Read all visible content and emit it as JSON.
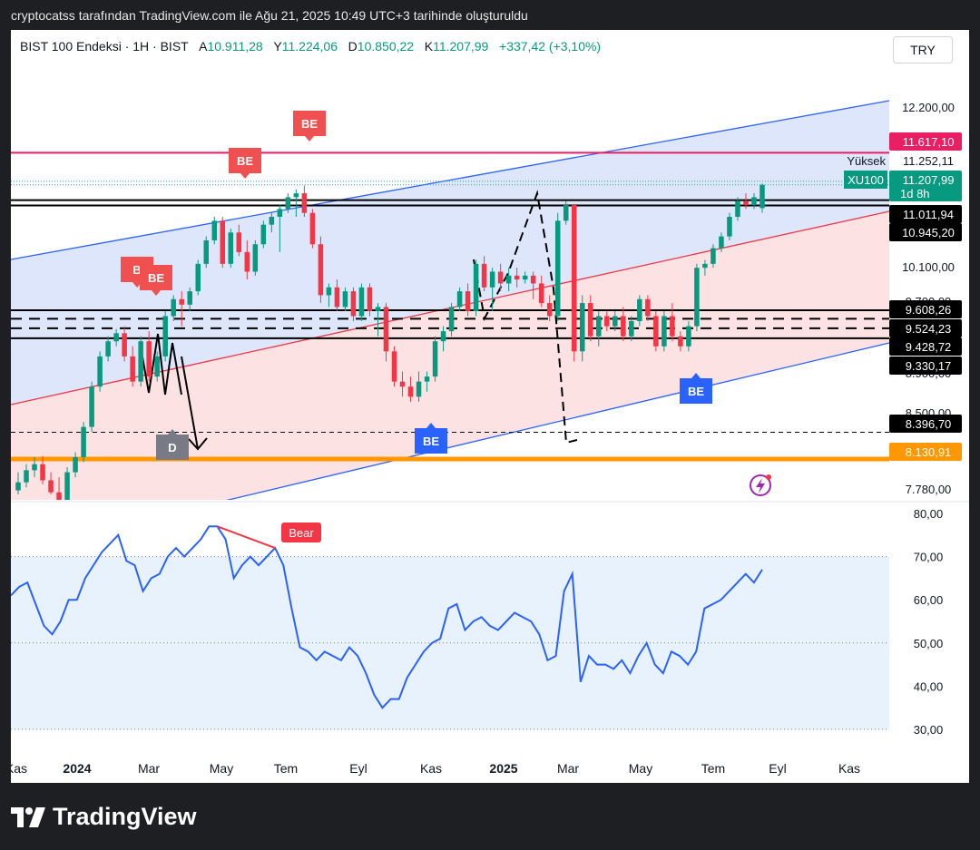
{
  "caption": "cryptocatss tarafından TradingView.com ile Ağu 21, 2025 10:49 UTC+3 tarihinde oluşturuldu",
  "brand": "TradingView",
  "currency_button": "TRY",
  "header": {
    "symbol": "BIST 100 Endeksi · 1H · BIST",
    "open_key": "A",
    "open": "10.911,28",
    "high_key": "Y",
    "high": "11.224,06",
    "low_key": "D",
    "low": "10.850,22",
    "close_key": "K",
    "close": "11.207,99",
    "change": "+337,42 (+3,10%)"
  },
  "colors": {
    "up": "#089981",
    "down": "#f23645",
    "channel_blue": "#2962ff",
    "channel_red": "#f23645",
    "orange": "#ff9800",
    "magenta": "#e91e63",
    "rsi_line": "#2962ff",
    "be_red": "#f05050",
    "be_blue": "#2962ff",
    "d_gray": "#787b86"
  },
  "chart_data": [
    {
      "type": "candlestick",
      "y_axis_labels": [
        "12.200,00",
        "10.100,00",
        "9.700,00",
        "9.300,00",
        "8.900,00",
        "8.500,00",
        "7.780,00"
      ],
      "x_axis_labels": [
        "Kas",
        "2024",
        "Mar",
        "May",
        "Tem",
        "Eyl",
        "Kas",
        "2025",
        "Mar",
        "May",
        "Tem",
        "Eyl",
        "Kas"
      ],
      "price_badges": [
        {
          "label": "11.617,10",
          "style": "magenta"
        },
        {
          "label": "11.252,11",
          "style": "plain"
        },
        {
          "label": "11.207,99",
          "style": "green",
          "tag": "XU100",
          "sub": "1d 8h"
        },
        {
          "label": "11.011,94",
          "style": "black"
        },
        {
          "label": "10.945,20",
          "style": "black"
        },
        {
          "label": "9.608,26",
          "style": "black"
        },
        {
          "label": "9.524,23",
          "style": "black"
        },
        {
          "label": "9.428,72",
          "style": "black"
        },
        {
          "label": "9.330,17",
          "style": "black"
        },
        {
          "label": "8.396,70",
          "style": "black"
        },
        {
          "label": "8.130,91",
          "style": "orange"
        }
      ],
      "high_label": "Yüksek",
      "markers": [
        {
          "text": "BE",
          "color": "red"
        },
        {
          "text": "BE",
          "color": "red"
        },
        {
          "text": "B",
          "color": "red"
        },
        {
          "text": "BE",
          "color": "red"
        },
        {
          "text": "D",
          "color": "gray"
        },
        {
          "text": "BE",
          "color": "blue"
        },
        {
          "text": "BE",
          "color": "blue"
        }
      ],
      "horizontal_levels": [
        11617.1,
        11011.94,
        10945.2,
        9608.26,
        9524.23,
        9428.72,
        9330.17,
        8396.7,
        8130.91
      ],
      "candles": [
        {
          "o": 7820,
          "h": 8000,
          "l": 7780,
          "c": 7900
        },
        {
          "o": 7900,
          "h": 8080,
          "l": 7850,
          "c": 8020
        },
        {
          "o": 8020,
          "h": 8150,
          "l": 7950,
          "c": 8080
        },
        {
          "o": 8080,
          "h": 8160,
          "l": 7880,
          "c": 7920
        },
        {
          "o": 7920,
          "h": 8000,
          "l": 7780,
          "c": 7800
        },
        {
          "o": 7800,
          "h": 7950,
          "l": 7720,
          "c": 7700
        },
        {
          "o": 7700,
          "h": 8050,
          "l": 7650,
          "c": 8000
        },
        {
          "o": 8000,
          "h": 8200,
          "l": 7950,
          "c": 8150
        },
        {
          "o": 8150,
          "h": 8500,
          "l": 8100,
          "c": 8450
        },
        {
          "o": 8450,
          "h": 8900,
          "l": 8400,
          "c": 8850
        },
        {
          "o": 8850,
          "h": 9200,
          "l": 8800,
          "c": 9150
        },
        {
          "o": 9150,
          "h": 9350,
          "l": 9100,
          "c": 9300
        },
        {
          "o": 9300,
          "h": 9420,
          "l": 9250,
          "c": 9380
        },
        {
          "o": 9380,
          "h": 9450,
          "l": 9100,
          "c": 9150
        },
        {
          "o": 9150,
          "h": 9250,
          "l": 8850,
          "c": 8900
        },
        {
          "o": 8900,
          "h": 9350,
          "l": 8850,
          "c": 9300
        },
        {
          "o": 9300,
          "h": 9400,
          "l": 8900,
          "c": 8950
        },
        {
          "o": 8950,
          "h": 9200,
          "l": 8900,
          "c": 9150
        },
        {
          "o": 9150,
          "h": 9600,
          "l": 9100,
          "c": 9550
        },
        {
          "o": 9550,
          "h": 9800,
          "l": 9500,
          "c": 9750
        },
        {
          "o": 9750,
          "h": 9850,
          "l": 9450,
          "c": 9680
        },
        {
          "o": 9680,
          "h": 9900,
          "l": 9600,
          "c": 9850
        },
        {
          "o": 9850,
          "h": 10250,
          "l": 9800,
          "c": 10200
        },
        {
          "o": 10200,
          "h": 10550,
          "l": 10150,
          "c": 10500
        },
        {
          "o": 10500,
          "h": 10800,
          "l": 10450,
          "c": 10750
        },
        {
          "o": 10750,
          "h": 10800,
          "l": 10150,
          "c": 10200
        },
        {
          "o": 10200,
          "h": 10650,
          "l": 10150,
          "c": 10600
        },
        {
          "o": 10600,
          "h": 10700,
          "l": 10300,
          "c": 10350
        },
        {
          "o": 10350,
          "h": 10500,
          "l": 10000,
          "c": 10100
        },
        {
          "o": 10100,
          "h": 10500,
          "l": 10050,
          "c": 10450
        },
        {
          "o": 10450,
          "h": 10750,
          "l": 10400,
          "c": 10700
        },
        {
          "o": 10700,
          "h": 10850,
          "l": 10600,
          "c": 10800
        },
        {
          "o": 10800,
          "h": 10950,
          "l": 10350,
          "c": 10900
        },
        {
          "o": 10900,
          "h": 11100,
          "l": 10850,
          "c": 11050
        },
        {
          "o": 11050,
          "h": 11150,
          "l": 10800,
          "c": 11100
        },
        {
          "o": 11100,
          "h": 11200,
          "l": 10800,
          "c": 10850
        },
        {
          "o": 10850,
          "h": 10900,
          "l": 10400,
          "c": 10450
        },
        {
          "o": 10450,
          "h": 10550,
          "l": 9700,
          "c": 9800
        },
        {
          "o": 9800,
          "h": 9950,
          "l": 9650,
          "c": 9900
        },
        {
          "o": 9900,
          "h": 10000,
          "l": 9600,
          "c": 9650
        },
        {
          "o": 9650,
          "h": 9900,
          "l": 9600,
          "c": 9850
        },
        {
          "o": 9850,
          "h": 9900,
          "l": 9500,
          "c": 9550
        },
        {
          "o": 9550,
          "h": 9950,
          "l": 9500,
          "c": 9900
        },
        {
          "o": 9900,
          "h": 9950,
          "l": 9550,
          "c": 9600
        },
        {
          "o": 9600,
          "h": 9700,
          "l": 9350,
          "c": 9650
        },
        {
          "o": 9650,
          "h": 9700,
          "l": 9100,
          "c": 9200
        },
        {
          "o": 9200,
          "h": 9250,
          "l": 8850,
          "c": 8900
        },
        {
          "o": 8900,
          "h": 9000,
          "l": 8750,
          "c": 8850
        },
        {
          "o": 8850,
          "h": 8950,
          "l": 8700,
          "c": 8750
        },
        {
          "o": 8750,
          "h": 9000,
          "l": 8700,
          "c": 8900
        },
        {
          "o": 8900,
          "h": 9000,
          "l": 8800,
          "c": 8950
        },
        {
          "o": 8950,
          "h": 9350,
          "l": 8900,
          "c": 9300
        },
        {
          "o": 9300,
          "h": 9450,
          "l": 9200,
          "c": 9400
        },
        {
          "o": 9400,
          "h": 9700,
          "l": 9350,
          "c": 9650
        },
        {
          "o": 9650,
          "h": 9900,
          "l": 9600,
          "c": 9850
        },
        {
          "o": 9850,
          "h": 9950,
          "l": 9550,
          "c": 9600
        },
        {
          "o": 9600,
          "h": 10250,
          "l": 9550,
          "c": 10200
        },
        {
          "o": 10200,
          "h": 10300,
          "l": 9850,
          "c": 9900
        },
        {
          "o": 9900,
          "h": 10150,
          "l": 9600,
          "c": 10100
        },
        {
          "o": 10100,
          "h": 10200,
          "l": 9850,
          "c": 9950
        },
        {
          "o": 9950,
          "h": 10150,
          "l": 9850,
          "c": 10050
        },
        {
          "o": 10050,
          "h": 10150,
          "l": 9900,
          "c": 10000
        },
        {
          "o": 10000,
          "h": 10100,
          "l": 9950,
          "c": 10050
        },
        {
          "o": 10050,
          "h": 10100,
          "l": 9750,
          "c": 9950
        },
        {
          "o": 9950,
          "h": 10050,
          "l": 9650,
          "c": 9700
        },
        {
          "o": 9700,
          "h": 9800,
          "l": 9500,
          "c": 9550
        },
        {
          "o": 9550,
          "h": 10850,
          "l": 9500,
          "c": 10750
        },
        {
          "o": 10750,
          "h": 11000,
          "l": 10700,
          "c": 10950
        },
        {
          "o": 10950,
          "h": 10950,
          "l": 9100,
          "c": 9200
        },
        {
          "o": 9200,
          "h": 9800,
          "l": 9100,
          "c": 9700
        },
        {
          "o": 9700,
          "h": 9800,
          "l": 9300,
          "c": 9350
        },
        {
          "o": 9350,
          "h": 9600,
          "l": 9250,
          "c": 9550
        },
        {
          "o": 9550,
          "h": 9600,
          "l": 9400,
          "c": 9450
        },
        {
          "o": 9450,
          "h": 9600,
          "l": 9400,
          "c": 9550
        },
        {
          "o": 9550,
          "h": 9650,
          "l": 9300,
          "c": 9350
        },
        {
          "o": 9350,
          "h": 9550,
          "l": 9300,
          "c": 9500
        },
        {
          "o": 9500,
          "h": 9800,
          "l": 9450,
          "c": 9750
        },
        {
          "o": 9750,
          "h": 9800,
          "l": 9500,
          "c": 9550
        },
        {
          "o": 9550,
          "h": 9600,
          "l": 9200,
          "c": 9250
        },
        {
          "o": 9250,
          "h": 9600,
          "l": 9200,
          "c": 9550
        },
        {
          "o": 9550,
          "h": 9700,
          "l": 9300,
          "c": 9350
        },
        {
          "o": 9350,
          "h": 9400,
          "l": 9200,
          "c": 9250
        },
        {
          "o": 9250,
          "h": 9500,
          "l": 9200,
          "c": 9450
        },
        {
          "o": 9450,
          "h": 10200,
          "l": 9400,
          "c": 10150
        },
        {
          "o": 10150,
          "h": 10250,
          "l": 10050,
          "c": 10200
        },
        {
          "o": 10200,
          "h": 10450,
          "l": 10150,
          "c": 10400
        },
        {
          "o": 10400,
          "h": 10600,
          "l": 10350,
          "c": 10550
        },
        {
          "o": 10550,
          "h": 10850,
          "l": 10500,
          "c": 10800
        },
        {
          "o": 10800,
          "h": 11050,
          "l": 10750,
          "c": 11000
        },
        {
          "o": 11000,
          "h": 11100,
          "l": 10900,
          "c": 10950
        },
        {
          "o": 10950,
          "h": 11100,
          "l": 10900,
          "c": 11050
        },
        {
          "o": 10911.28,
          "h": 11224.06,
          "l": 10850.22,
          "c": 11207.99
        }
      ]
    },
    {
      "type": "line",
      "name": "RSI",
      "y_axis_labels": [
        "80,00",
        "70,00",
        "60,00",
        "50,00",
        "40,00",
        "30,00"
      ],
      "ylim": [
        28,
        82
      ],
      "bands": [
        30,
        50,
        70
      ],
      "annotation": "Bear",
      "values": [
        61,
        63,
        64,
        59,
        54,
        52,
        55,
        60,
        60,
        65,
        68,
        71,
        73,
        75,
        69,
        68,
        62,
        65,
        66,
        70,
        72,
        70,
        72,
        74,
        77,
        77,
        74,
        65,
        68,
        70,
        68,
        70,
        72,
        68,
        58,
        49,
        48,
        46,
        48,
        47,
        46,
        49,
        47,
        43,
        38,
        35,
        37,
        37,
        42,
        45,
        48,
        50,
        51,
        58,
        59,
        53,
        55,
        56,
        54,
        53,
        55,
        57,
        56,
        55,
        52,
        46,
        47,
        62,
        66,
        41,
        47,
        45,
        45,
        44,
        46,
        43,
        47,
        50,
        45,
        43,
        48,
        47,
        45,
        48,
        58,
        59,
        60,
        62,
        64,
        66,
        64,
        67
      ]
    }
  ]
}
